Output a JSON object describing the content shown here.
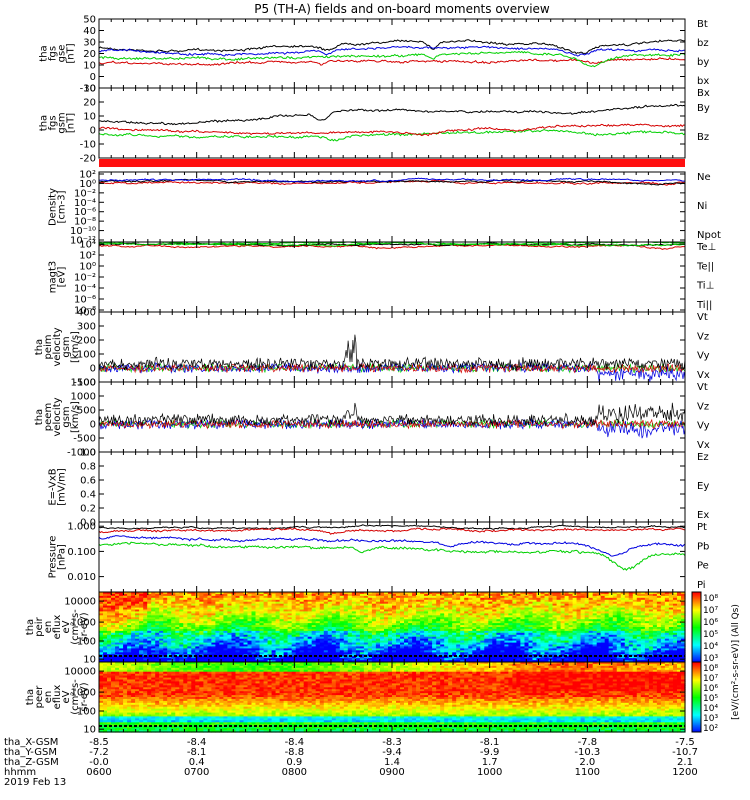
{
  "title": "P5 (TH-A) fields and on-board moments overview",
  "colors": {
    "black": "#000000",
    "red": "#d40000",
    "blue": "#0000e0",
    "green": "#00d000"
  },
  "chart_data": {
    "type": "line",
    "xlabel": "hhmm",
    "date": "2019 Feb 13",
    "x_ticks": [
      "0600",
      "0700",
      "0800",
      "0900",
      "1000",
      "1100",
      "1200"
    ],
    "ephemeris": [
      {
        "label": "tha_X-GSM",
        "values": [
          "-8.5",
          "-8.4",
          "-8.4",
          "-8.3",
          "-8.1",
          "-7.8",
          "-7.5"
        ]
      },
      {
        "label": "tha_Y-GSM",
        "values": [
          "-7.2",
          "-8.1",
          "-8.8",
          "-9.4",
          "-9.9",
          "-10.3",
          "-10.7"
        ]
      },
      {
        "label": "tha_Z-GSM",
        "values": [
          "-0.0",
          "0.4",
          "0.9",
          "1.4",
          "1.7",
          "2.0",
          "2.1"
        ]
      }
    ],
    "panels": [
      {
        "key": "fgs_gse",
        "ylabel": [
          "tha",
          "fgs",
          "gse",
          "[nT]"
        ],
        "ylim": [
          -10,
          50
        ],
        "ticks": [
          "-10",
          "0",
          "10",
          "20",
          "30",
          "40",
          "50"
        ],
        "series": [
          {
            "name": "Bt",
            "color": "black"
          },
          {
            "name": "bz",
            "color": "red"
          },
          {
            "name": "by",
            "color": "green"
          },
          {
            "name": "bx",
            "color": "blue"
          }
        ]
      },
      {
        "key": "fgs_gsm",
        "ylabel": [
          "tha",
          "fgs",
          "gsm",
          "[nT]"
        ],
        "ylim": [
          -25,
          30
        ],
        "ticks": [
          "-20",
          "-10",
          "0",
          "10",
          "20",
          "30"
        ],
        "series": [
          {
            "name": "Bx",
            "color": "black"
          },
          {
            "name": "By",
            "color": "green"
          },
          {
            "name": "Bz",
            "color": "red"
          }
        ]
      },
      {
        "key": "density",
        "ylabel": [
          "Density",
          "[cm-3]"
        ],
        "log": true,
        "ticks": [
          "10²",
          "10⁰",
          "10⁻²",
          "10⁻⁴",
          "10⁻⁶",
          "10⁻⁸",
          "10⁻¹⁰",
          "10⁻¹²"
        ],
        "series": [
          {
            "name": "Ne",
            "color": "red"
          },
          {
            "name": "Ni",
            "color": "black"
          },
          {
            "name": "Npot",
            "color": "blue"
          }
        ]
      },
      {
        "key": "temp",
        "ylabel": [
          "magt3",
          "[eV]"
        ],
        "log": true,
        "ticks": [
          "10⁴",
          "10²",
          "10⁰",
          "10⁻²",
          "10⁻⁴",
          "10⁻⁶",
          "10⁻⁸"
        ],
        "series": [
          {
            "name": "Te⊥",
            "color": "red"
          },
          {
            "name": "Te||",
            "color": "black"
          },
          {
            "name": "Ti⊥",
            "color": "green"
          },
          {
            "name": "Ti||",
            "color": "green"
          }
        ]
      },
      {
        "key": "peim_vel",
        "ylabel": [
          "tha",
          "peim",
          "velocity",
          "gsm",
          "[km/s]"
        ],
        "ylim": [
          -100,
          400
        ],
        "ticks": [
          "-100",
          "0",
          "100",
          "200",
          "300",
          "400"
        ],
        "series": [
          {
            "name": "Vt",
            "color": "black"
          },
          {
            "name": "Vz",
            "color": "red"
          },
          {
            "name": "Vy",
            "color": "green"
          },
          {
            "name": "Vx",
            "color": "blue"
          }
        ]
      },
      {
        "key": "peem_vel",
        "ylabel": [
          "tha",
          "peem",
          "velocity",
          "gsm",
          "[km/s]"
        ],
        "ylim": [
          -1000,
          1500
        ],
        "ticks": [
          "-1000",
          "-500",
          "0",
          "500",
          "1000",
          "1500"
        ],
        "series": [
          {
            "name": "Vt",
            "color": "black"
          },
          {
            "name": "Vz",
            "color": "red"
          },
          {
            "name": "Vy",
            "color": "green"
          },
          {
            "name": "Vx",
            "color": "blue"
          }
        ]
      },
      {
        "key": "efield",
        "ylabel": [
          "E=-VxB",
          "[mV/m]"
        ],
        "ylim": [
          0,
          1
        ],
        "ticks": [
          "0.0",
          "0.2",
          "0.4",
          "0.6",
          "0.8",
          "1.0"
        ],
        "series": [
          {
            "name": "Ez",
            "color": "red"
          },
          {
            "name": "Ey",
            "color": "green"
          },
          {
            "name": "Ex",
            "color": "blue"
          }
        ]
      },
      {
        "key": "pressure",
        "ylabel": [
          "Pressure",
          "[nPa]"
        ],
        "log": true,
        "ticks": [
          "1.000",
          "0.100",
          "0.010"
        ],
        "series": [
          {
            "name": "Pt",
            "color": "black"
          },
          {
            "name": "Pb",
            "color": "red"
          },
          {
            "name": "Pe",
            "color": "green"
          },
          {
            "name": "Pi",
            "color": "blue"
          }
        ]
      },
      {
        "key": "peir_flux",
        "ylabel": [
          "tha",
          "peir",
          "en",
          "eflux",
          "eV",
          "(cm²-s-",
          "sr-eV)"
        ],
        "ticks": [
          "10000",
          "1000",
          "100",
          "10"
        ]
      },
      {
        "key": "peer_flux",
        "ylabel": [
          "tha",
          "peer",
          "en",
          "eflux",
          "eV",
          "(cm²-s-",
          "sr-eV)"
        ],
        "ticks": [
          "10000",
          "1000",
          "100",
          "10"
        ]
      }
    ],
    "colorbar": {
      "label": "[eV/(cm²-s-sr-eV)] (All Qs)",
      "top_ticks": [
        "10⁸",
        "10⁷",
        "10⁶",
        "10⁵",
        "10⁴",
        "10³"
      ],
      "bottom_ticks": [
        "10⁸",
        "10⁷",
        "10⁶",
        "10⁵",
        "10⁴",
        "10³",
        "10²"
      ]
    }
  }
}
